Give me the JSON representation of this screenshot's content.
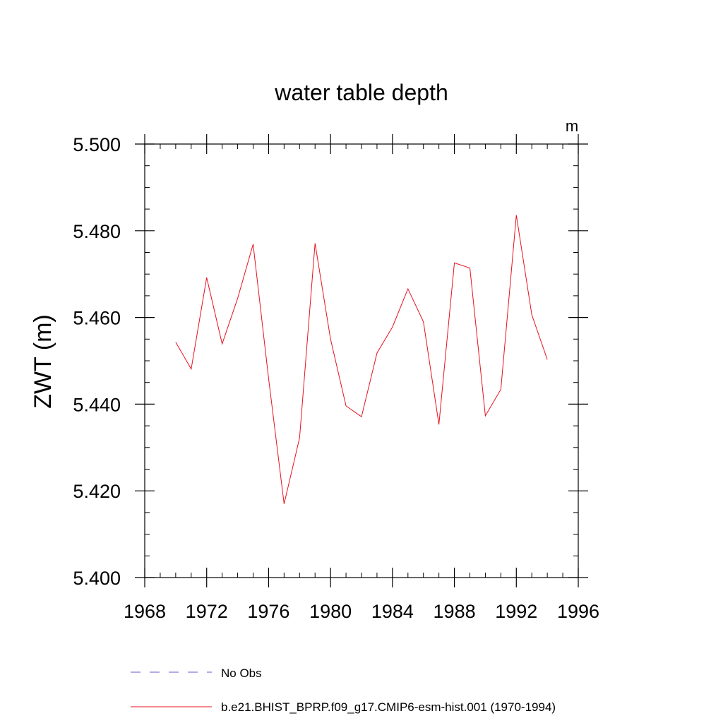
{
  "chart_data": {
    "type": "line",
    "title": "water table depth",
    "units_label": "m",
    "ylabel": "ZWT  (m)",
    "xlabel": "",
    "xlim": [
      1968,
      1996
    ],
    "ylim": [
      5.4,
      5.5
    ],
    "x_ticks": [
      1968,
      1972,
      1976,
      1980,
      1984,
      1988,
      1992,
      1996
    ],
    "x_minor_step": 1,
    "y_ticks": [
      "5.400",
      "5.420",
      "5.440",
      "5.460",
      "5.480",
      "5.500"
    ],
    "y_tick_values": [
      5.4,
      5.42,
      5.44,
      5.46,
      5.48,
      5.5
    ],
    "y_minor_step": 0.005,
    "legend_position": "bottom",
    "series": [
      {
        "name": "b.e21.BHIST_BPRP.f09_g17.CMIP6-esm-hist.001 (1970-1994)",
        "color": "#e8101e",
        "style": "solid",
        "x": [
          1970,
          1971,
          1972,
          1973,
          1974,
          1975,
          1976,
          1977,
          1978,
          1979,
          1980,
          1981,
          1982,
          1983,
          1984,
          1985,
          1986,
          1987,
          1988,
          1989,
          1990,
          1991,
          1992,
          1993,
          1994
        ],
        "values": [
          5.4543,
          5.4481,
          5.4692,
          5.4539,
          5.4644,
          5.4769,
          5.4459,
          5.417,
          5.4322,
          5.4771,
          5.455,
          5.4396,
          5.4371,
          5.4518,
          5.4578,
          5.4666,
          5.459,
          5.4353,
          5.4726,
          5.4714,
          5.4373,
          5.4434,
          5.4836,
          5.4606,
          5.4503
        ]
      }
    ],
    "legend": [
      {
        "label": "No Obs",
        "color": "#6a5acd",
        "style": "dashed"
      },
      {
        "label": "b.e21.BHIST_BPRP.f09_g17.CMIP6-esm-hist.001 (1970-1994)",
        "color": "#e8101e",
        "style": "solid"
      }
    ]
  }
}
